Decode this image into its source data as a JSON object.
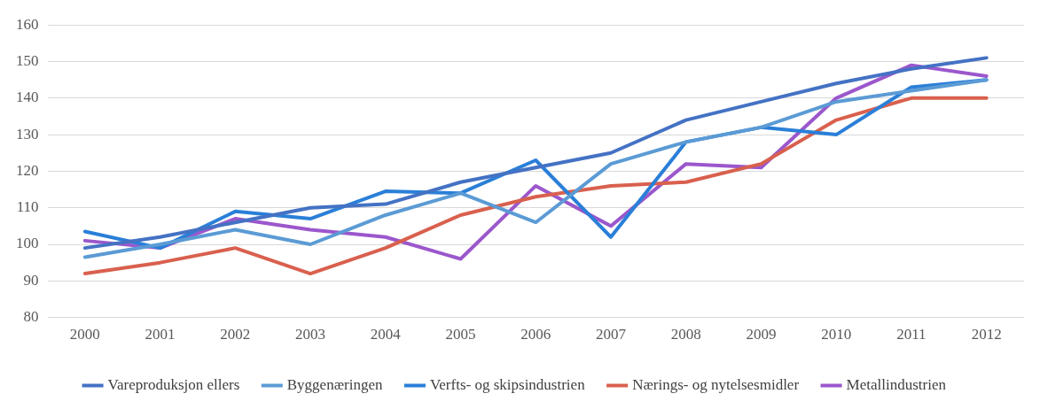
{
  "chart_data": {
    "type": "line",
    "categories": [
      "2000",
      "2001",
      "2002",
      "2003",
      "2004",
      "2005",
      "2006",
      "2007",
      "2008",
      "2009",
      "2010",
      "2011",
      "2012"
    ],
    "series": [
      {
        "name": "Vareproduksjon ellers",
        "color": "#4472c4",
        "values": [
          99,
          102,
          106,
          110,
          111,
          117,
          121,
          125,
          134,
          139,
          144,
          148,
          151
        ]
      },
      {
        "name": "Byggenæringen",
        "color": "#5b9bd5",
        "values": [
          96.5,
          100,
          104,
          100,
          108,
          114,
          106,
          122,
          128,
          132,
          139,
          142,
          145
        ]
      },
      {
        "name": "Verfts- og skipsindustrien",
        "color": "#2a7fd8",
        "values": [
          103.5,
          99,
          109,
          107,
          114.5,
          114,
          123,
          102,
          128,
          132,
          130,
          143,
          145
        ]
      },
      {
        "name": "Nærings- og nytelsesmidler",
        "color": "#d9604e",
        "values": [
          92,
          95,
          99,
          92,
          99,
          108,
          113,
          116,
          117,
          122,
          134,
          140,
          140
        ]
      },
      {
        "name": "Metallindustrien",
        "color": "#9b57cc",
        "values": [
          101,
          99,
          107,
          104,
          102,
          96,
          116,
          105,
          122,
          121,
          140,
          149,
          146
        ]
      }
    ],
    "ylim": [
      80,
      160
    ],
    "yticks": [
      80,
      90,
      100,
      110,
      120,
      130,
      140,
      150,
      160
    ],
    "grid": "y",
    "legend": "bottom",
    "marker": "none",
    "line_style": "solid"
  }
}
